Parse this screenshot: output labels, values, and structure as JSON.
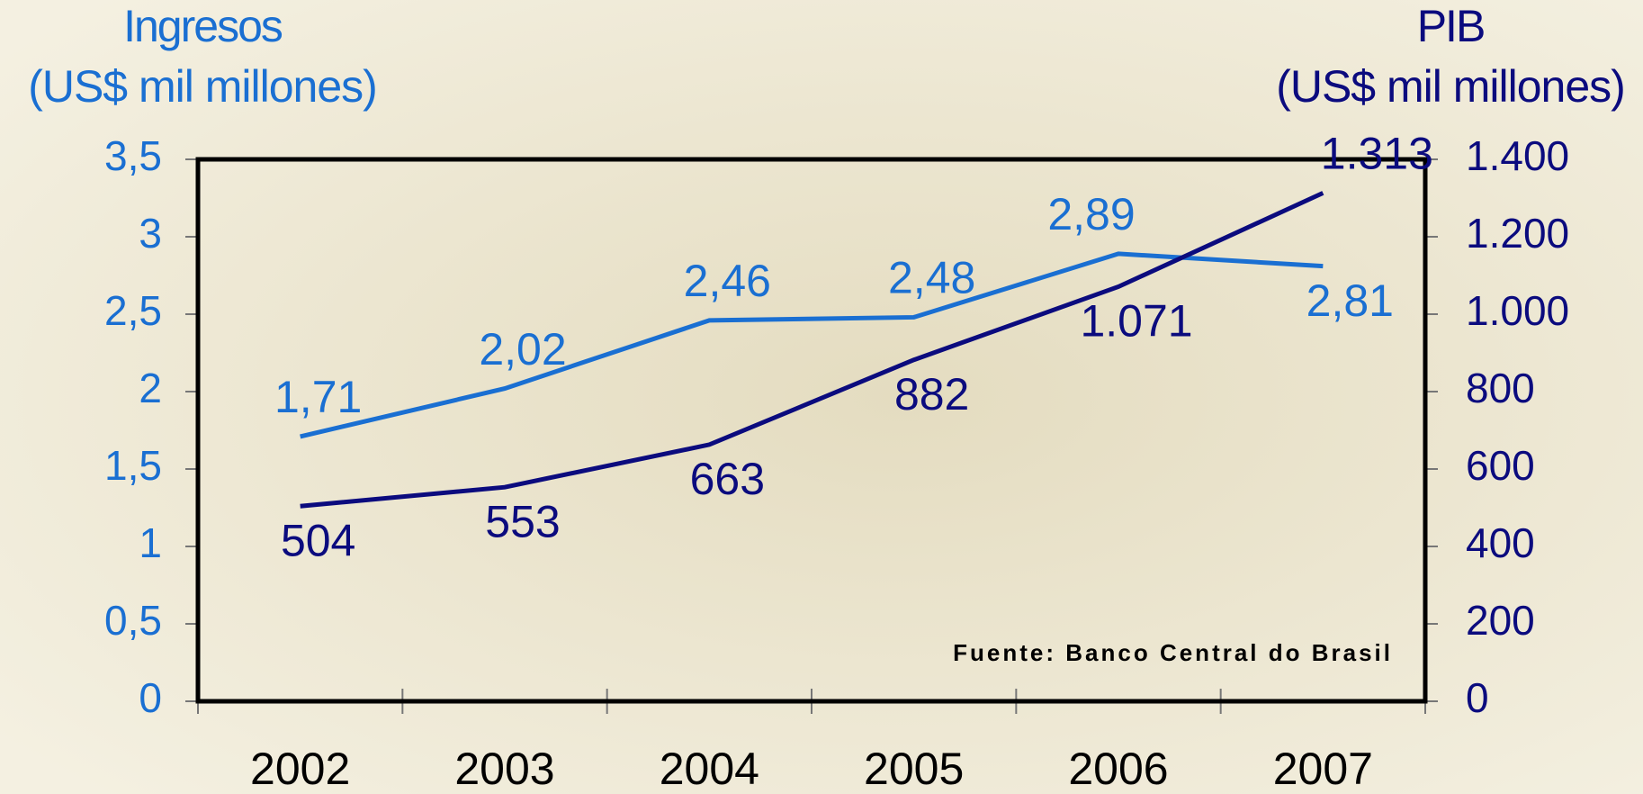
{
  "chart_data": {
    "type": "line",
    "ylabel": [
      "Ingresos",
      "(US$ mil millones)"
    ],
    "y2label": [
      "PIB",
      "(US$ mil millones)"
    ],
    "annotation": "Fuente: Banco Central do Brasil",
    "categories": [
      "2002",
      "2003",
      "2004",
      "2005",
      "2006",
      "2007"
    ],
    "series": [
      {
        "name": "Ingresos",
        "color": "#1a6fd2",
        "values": [
          1.71,
          2.02,
          2.46,
          2.48,
          2.89,
          2.81
        ],
        "value_labels": [
          "1,71",
          "2,02",
          "2,46",
          "2,48",
          "2,89",
          "2,81"
        ]
      },
      {
        "name": "PIB",
        "color": "#0b0b7e",
        "axis": "y2",
        "values": [
          504,
          553,
          663,
          882,
          1071,
          1313
        ],
        "value_labels": [
          "504",
          "553",
          "663",
          "882",
          "1.071",
          "1.313"
        ]
      }
    ],
    "ylim": [
      0,
      3.5
    ],
    "yticks": [
      0,
      {
        "value": 0.5,
        "label": "0,5"
      },
      1,
      {
        "value": 1.5,
        "label": "1,5"
      },
      2,
      {
        "value": 2.5,
        "label": "2,5"
      },
      3,
      {
        "value": 3.5,
        "label": "3,5"
      }
    ],
    "y2lim": [
      0,
      1400
    ],
    "y2ticks": [
      0,
      200,
      400,
      600,
      800,
      {
        "value": 1000,
        "label": "1.000"
      },
      {
        "value": 1200,
        "label": "1.200"
      },
      {
        "value": 1400,
        "label": "1.400"
      }
    ]
  }
}
